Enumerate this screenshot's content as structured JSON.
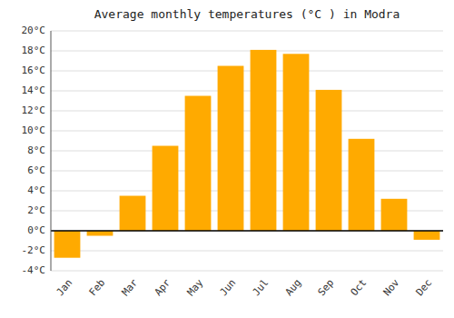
{
  "chart_data": {
    "type": "bar",
    "title": "Average monthly temperatures (°C ) in Modra",
    "categories": [
      "Jan",
      "Feb",
      "Mar",
      "Apr",
      "May",
      "Jun",
      "Jul",
      "Aug",
      "Sep",
      "Oct",
      "Nov",
      "Dec"
    ],
    "values": [
      -2.7,
      -0.5,
      3.5,
      8.5,
      13.5,
      16.5,
      18.1,
      17.7,
      14.1,
      9.2,
      3.2,
      -0.9
    ],
    "color": "#FFAA00",
    "ylim": [
      -4,
      20
    ],
    "yticks": [
      {
        "value": -4,
        "label": "-4°C"
      },
      {
        "value": -2,
        "label": "-2°C"
      },
      {
        "value": 0,
        "label": "0°C"
      },
      {
        "value": 2,
        "label": "2°C"
      },
      {
        "value": 4,
        "label": "4°C"
      },
      {
        "value": 6,
        "label": "6°C"
      },
      {
        "value": 8,
        "label": "8°C"
      },
      {
        "value": 10,
        "label": "10°C"
      },
      {
        "value": 12,
        "label": "12°C"
      },
      {
        "value": 14,
        "label": "14°C"
      },
      {
        "value": 16,
        "label": "16°C"
      },
      {
        "value": 18,
        "label": "18°C"
      },
      {
        "value": 20,
        "label": "20°C"
      }
    ],
    "grid": true
  }
}
